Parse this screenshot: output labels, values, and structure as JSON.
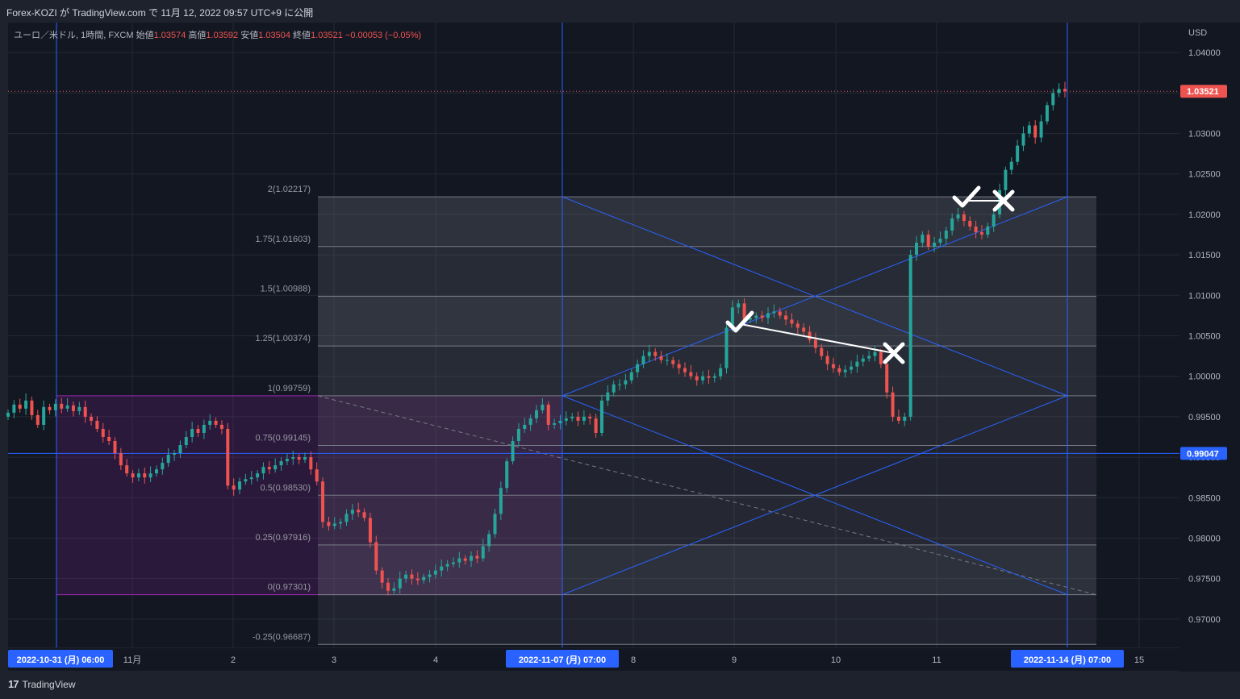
{
  "header": {
    "published": "Forex-KOZI が TradingView.com で 11月 12, 2022 09:57 UTC+9 に公開"
  },
  "legend": {
    "symbol": "ユーロ／米ドル, 1時間, FXCM",
    "open_label": "始値",
    "open": "1.03574",
    "high_label": "高値",
    "high": "1.03592",
    "low_label": "安値",
    "low": "1.03504",
    "close_label": "終値",
    "close": "1.03521",
    "change": "−0.00053 (−0.05%)"
  },
  "footer": {
    "brand": "TradingView"
  },
  "colors": {
    "up": "#26a69a",
    "down": "#ef5350",
    "bg": "#131722",
    "panel": "#1e222d",
    "blue": "#2962ff",
    "fib": "#787b86",
    "purple": "#9c27b0"
  },
  "chart_data": {
    "type": "candlestick",
    "symbol": "EUR/USD",
    "timeframe": "1H",
    "currency": "USD",
    "ylim": [
      0.9665,
      1.0437
    ],
    "y_ticks": [
      "1.04000",
      "1.03500",
      "1.03000",
      "1.02500",
      "1.02000",
      "1.01500",
      "1.01000",
      "1.00500",
      "1.00000",
      "0.99500",
      "0.99000",
      "0.98500",
      "0.98000",
      "0.97500",
      "0.97000"
    ],
    "y_tick_values": [
      1.04,
      1.035,
      1.03,
      1.025,
      1.02,
      1.015,
      1.01,
      1.005,
      1.0,
      0.995,
      0.99,
      0.985,
      0.98,
      0.975,
      0.97
    ],
    "x_ticks": [
      {
        "label": "11月",
        "day": 1
      },
      {
        "label": "2",
        "day": 2
      },
      {
        "label": "3",
        "day": 3
      },
      {
        "label": "4",
        "day": 4
      },
      {
        "label": "8",
        "day": 8
      },
      {
        "label": "9",
        "day": 9
      },
      {
        "label": "10",
        "day": 10
      },
      {
        "label": "11",
        "day": 11
      },
      {
        "label": "15",
        "day": 15
      }
    ],
    "x_highlight_labels": [
      {
        "label": "2022-10-31 (月)  06:00",
        "pos": "left"
      },
      {
        "label": "2022-11-07 (月)  07:00",
        "pos": "mid"
      },
      {
        "label": "2022-11-14 (月)  07:00",
        "pos": "right"
      }
    ],
    "last_price": "1.03521",
    "last_price_value": 1.03521,
    "crosshair_price": "0.99047",
    "crosshair_value": 0.99047,
    "fib_levels": [
      {
        "label": "2(1.02217)",
        "value": 1.02217
      },
      {
        "label": "1.75(1.01603)",
        "value": 1.01603
      },
      {
        "label": "1.5(1.00988)",
        "value": 1.00988
      },
      {
        "label": "1.25(1.00374)",
        "value": 1.00374
      },
      {
        "label": "1(0.99759)",
        "value": 0.99759
      },
      {
        "label": "0.75(0.99145)",
        "value": 0.99145
      },
      {
        "label": "0.5(0.98530)",
        "value": 0.9853
      },
      {
        "label": "0.25(0.97916)",
        "value": 0.97916
      },
      {
        "label": "0(0.97301)",
        "value": 0.97301
      },
      {
        "label": "-0.25(0.96687)",
        "value": 0.96687
      }
    ],
    "close_path": [
      0.9955,
      0.9965,
      0.996,
      0.997,
      0.9952,
      0.994,
      0.9962,
      0.9958,
      0.9966,
      0.996,
      0.9964,
      0.9957,
      0.9962,
      0.995,
      0.9945,
      0.9935,
      0.9925,
      0.992,
      0.9905,
      0.989,
      0.988,
      0.9875,
      0.988,
      0.9875,
      0.988,
      0.9885,
      0.9893,
      0.9903,
      0.9905,
      0.9915,
      0.9925,
      0.9935,
      0.993,
      0.994,
      0.9945,
      0.994,
      0.9935,
      0.9865,
      0.986,
      0.987,
      0.9873,
      0.9875,
      0.988,
      0.9888,
      0.9885,
      0.989,
      0.9895,
      0.9898,
      0.99,
      0.9897,
      0.99,
      0.9885,
      0.987,
      0.982,
      0.9815,
      0.9818,
      0.982,
      0.983,
      0.9835,
      0.9832,
      0.9825,
      0.9795,
      0.976,
      0.9745,
      0.9735,
      0.9738,
      0.975,
      0.9755,
      0.975,
      0.9748,
      0.9752,
      0.9755,
      0.976,
      0.9765,
      0.9768,
      0.977,
      0.9775,
      0.9772,
      0.9778,
      0.9775,
      0.979,
      0.9805,
      0.983,
      0.9862,
      0.9895,
      0.992,
      0.9935,
      0.994,
      0.9948,
      0.9958,
      0.9965,
      0.994,
      0.9942,
      0.9945,
      0.9948,
      0.995,
      0.9945,
      0.995,
      0.9948,
      0.993,
      0.997,
      0.998,
      0.999,
      0.999,
      0.9995,
      1.0005,
      1.0015,
      1.0025,
      1.003,
      1.0025,
      1.002,
      1.002,
      1.0015,
      1.001,
      1.0005,
      1.0,
      0.9995,
      1.0,
      0.9998,
      1.0,
      1.001,
      1.006,
      1.0085,
      1.009,
      1.007,
      1.0072,
      1.0075,
      1.0072,
      1.0078,
      1.008,
      1.0075,
      1.007,
      1.0065,
      1.006,
      1.0055,
      1.0045,
      1.0035,
      1.0025,
      1.0015,
      1.001,
      1.0005,
      1.0008,
      1.0012,
      1.0018,
      1.0022,
      1.0025,
      1.003,
      1.0015,
      0.998,
      0.995,
      0.9945,
      0.995,
      1.015,
      1.0165,
      1.0175,
      1.016,
      1.0165,
      1.017,
      1.018,
      1.0195,
      1.02,
      1.0192,
      1.0185,
      1.0178,
      1.0175,
      1.0185,
      1.02,
      1.023,
      1.0255,
      1.0265,
      1.0285,
      1.03,
      1.031,
      1.0295,
      1.0315,
      1.0335,
      1.035,
      1.0355,
      1.0352
    ]
  }
}
